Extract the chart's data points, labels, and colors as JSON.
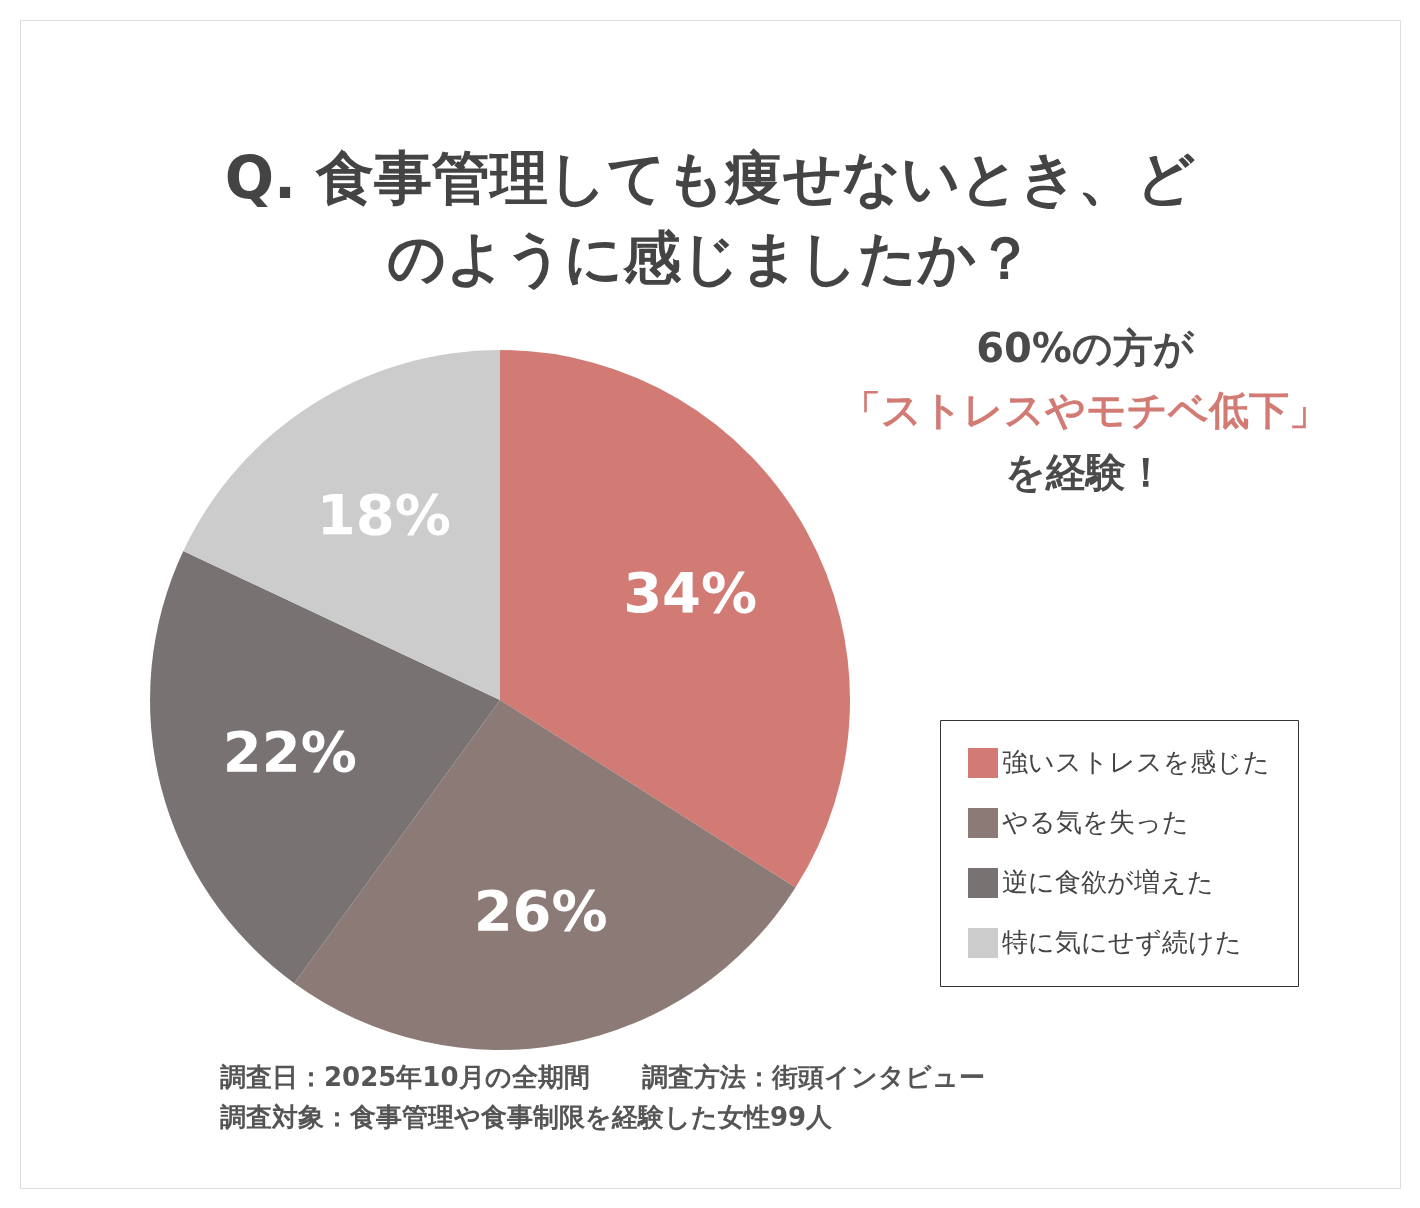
{
  "chart_data": {
    "type": "pie",
    "title": "Q. 食事管理しても痩せないとき、どのように感じましたか？",
    "categories": [
      "強いストレスを感じた",
      "やる気を失った",
      "逆に食欲が増えた",
      "特に気にせず続けた"
    ],
    "values": [
      34,
      26,
      22,
      18
    ],
    "colors": [
      "#d27a74",
      "#8c7a77",
      "#787372",
      "#cccccc"
    ],
    "value_labels": [
      "34%",
      "26%",
      "22%",
      "18%"
    ],
    "legend": "bottom right",
    "annotations": [
      "60%の方が",
      "「ストレスやモチベ低下」",
      "を経験！",
      "調査日：2025年10月の全期間　　調査方法：街頭インタビュー",
      "調査対象：食事管理や食事制限を経験した女性99人"
    ]
  }
}
